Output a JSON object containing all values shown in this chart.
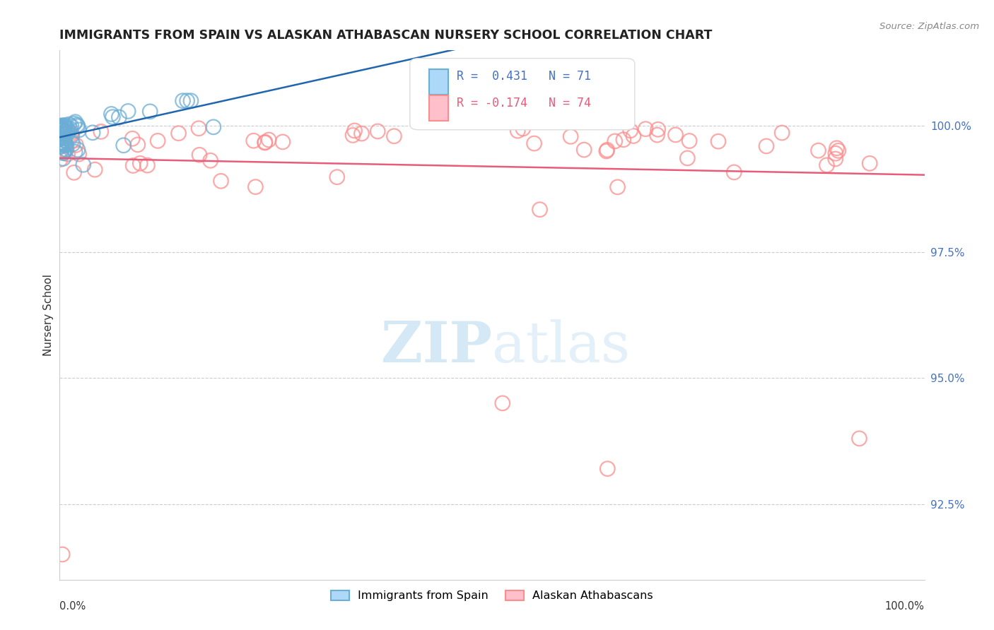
{
  "title": "IMMIGRANTS FROM SPAIN VS ALASKAN ATHABASCAN NURSERY SCHOOL CORRELATION CHART",
  "source": "Source: ZipAtlas.com",
  "ylabel": "Nursery School",
  "xlim": [
    0.0,
    100.0
  ],
  "ylim": [
    91.0,
    101.5
  ],
  "blue_R": 0.431,
  "blue_N": 71,
  "pink_R": -0.174,
  "pink_N": 74,
  "blue_color": "#6baed6",
  "pink_color": "#fc8d8d",
  "blue_edge_color": "#4292c6",
  "pink_edge_color": "#f768a1",
  "blue_line_color": "#2166ac",
  "pink_line_color": "#e85c7a",
  "right_tick_color": "#4472c4",
  "watermark_color": "#cde4f5",
  "grid_color": "#cccccc",
  "background_color": "#ffffff",
  "title_color": "#222222",
  "source_color": "#888888",
  "label_color": "#333333"
}
